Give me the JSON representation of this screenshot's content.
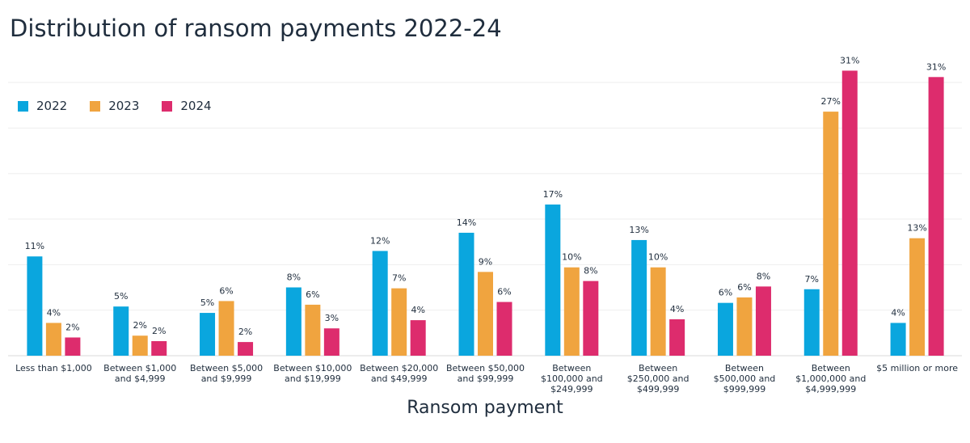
{
  "chart_data": {
    "type": "bar",
    "title": "Distribution of ransom payments 2022-24",
    "x_label": "Ransom payment",
    "categories": [
      "Less than $1,000",
      "Between $1,000 and $4,999",
      "Between $5,000 and $9,999",
      "Between $10,000 and $19,999",
      "Between $20,000 and $49,999",
      "Between $50,000 and $99,999",
      "Between $100,000 and $249,999",
      "Between $250,000 and $499,999",
      "Between $500,000 and $999,999",
      "Between $1,000,000 and $4,999,999",
      "$5 million or more"
    ],
    "series": [
      {
        "name": "2022",
        "color": "#0aa6de",
        "values": [
          10.9,
          5.4,
          4.7,
          7.5,
          11.5,
          13.5,
          16.6,
          12.7,
          5.8,
          7.3,
          3.6
        ],
        "value_labels": [
          "11%",
          "5%",
          "5%",
          "8%",
          "12%",
          "14%",
          "17%",
          "13%",
          "6%",
          "7%",
          "4%"
        ]
      },
      {
        "name": "2023",
        "color": "#f0a43f",
        "values": [
          3.6,
          2.2,
          6.0,
          5.6,
          7.4,
          9.2,
          9.7,
          9.7,
          6.4,
          26.8,
          12.9
        ],
        "value_labels": [
          "4%",
          "2%",
          "6%",
          "6%",
          "7%",
          "9%",
          "10%",
          "10%",
          "6%",
          "27%",
          "13%"
        ]
      },
      {
        "name": "2024",
        "color": "#dd2c6d",
        "values": [
          2.0,
          1.6,
          1.5,
          3.0,
          3.9,
          5.9,
          8.2,
          4.0,
          7.6,
          31.3,
          30.6
        ],
        "value_labels": [
          "2%",
          "2%",
          "2%",
          "3%",
          "4%",
          "6%",
          "8%",
          "4%",
          "8%",
          "31%",
          "31%"
        ]
      }
    ],
    "ylim": [
      0,
      34
    ],
    "yticks": [
      0,
      5,
      10,
      15,
      20,
      25,
      30
    ],
    "grid": true,
    "legend": "top-left"
  }
}
